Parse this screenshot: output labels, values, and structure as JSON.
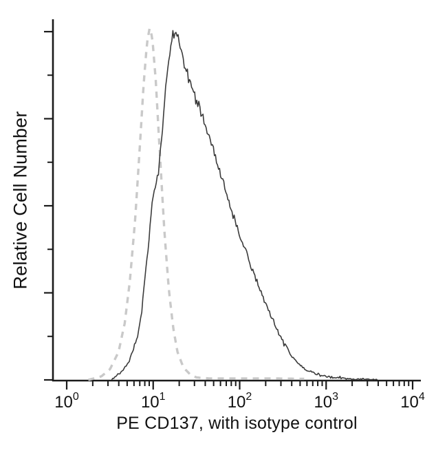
{
  "chart_data": {
    "type": "line",
    "chart_kind": "flow-cytometry-histogram",
    "title": "",
    "xlabel": "PE CD137, with isotype control",
    "ylabel": "Relative Cell Number",
    "x_scale": "log10",
    "x_range_exponents": [
      0,
      4
    ],
    "x_major_ticks": [
      {
        "base": "10",
        "exponent": "0"
      },
      {
        "base": "10",
        "exponent": "1"
      },
      {
        "base": "10",
        "exponent": "2"
      },
      {
        "base": "10",
        "exponent": "3"
      },
      {
        "base": "10",
        "exponent": "4"
      }
    ],
    "y_axis": {
      "label_visible": true,
      "tick_labels_visible": false,
      "major_tick_count": 5,
      "minor_ticks_between": 1
    },
    "grid": false,
    "legend_visible": false,
    "axis_color": "#1a1a1a",
    "background": "#ffffff",
    "series": [
      {
        "name": "isotype control",
        "line_style": "dashed",
        "color": "#c9c9c9",
        "line_width": 3.4,
        "dash_pattern": [
          9,
          8
        ],
        "noise_amplitude": 0,
        "noise_seed": 1,
        "points": [
          [
            0.25,
            0
          ],
          [
            0.4,
            0.01
          ],
          [
            0.5,
            0.03
          ],
          [
            0.6,
            0.08
          ],
          [
            0.67,
            0.16
          ],
          [
            0.73,
            0.28
          ],
          [
            0.79,
            0.45
          ],
          [
            0.85,
            0.68
          ],
          [
            0.89,
            0.84
          ],
          [
            0.93,
            0.96
          ],
          [
            0.96,
            1.0
          ],
          [
            0.99,
            0.97
          ],
          [
            1.03,
            0.85
          ],
          [
            1.08,
            0.63
          ],
          [
            1.13,
            0.42
          ],
          [
            1.18,
            0.26
          ],
          [
            1.23,
            0.15
          ],
          [
            1.28,
            0.08
          ],
          [
            1.35,
            0.035
          ],
          [
            1.43,
            0.015
          ],
          [
            1.5,
            0.007
          ],
          [
            1.65,
            0.004
          ],
          [
            2.0,
            0.004
          ],
          [
            2.4,
            0.004
          ],
          [
            2.75,
            0.003
          ]
        ]
      },
      {
        "name": "PE CD137",
        "line_style": "solid",
        "color": "#3a3a3a",
        "line_width": 1.6,
        "dash_pattern": [],
        "noise_amplitude": 0.022,
        "noise_seed": 9,
        "points": [
          [
            0.52,
            0
          ],
          [
            0.62,
            0.02
          ],
          [
            0.72,
            0.05
          ],
          [
            0.82,
            0.12
          ],
          [
            0.87,
            0.2
          ],
          [
            0.92,
            0.33
          ],
          [
            0.97,
            0.45
          ],
          [
            1.0,
            0.52
          ],
          [
            1.03,
            0.55
          ],
          [
            1.07,
            0.6
          ],
          [
            1.11,
            0.72
          ],
          [
            1.15,
            0.85
          ],
          [
            1.19,
            0.93
          ],
          [
            1.23,
            0.98
          ],
          [
            1.27,
            0.985
          ],
          [
            1.31,
            0.95
          ],
          [
            1.36,
            0.89
          ],
          [
            1.42,
            0.85
          ],
          [
            1.47,
            0.81
          ],
          [
            1.52,
            0.78
          ],
          [
            1.58,
            0.74
          ],
          [
            1.65,
            0.69
          ],
          [
            1.72,
            0.63
          ],
          [
            1.8,
            0.57
          ],
          [
            1.88,
            0.5
          ],
          [
            1.96,
            0.44
          ],
          [
            2.04,
            0.38
          ],
          [
            2.12,
            0.33
          ],
          [
            2.2,
            0.28
          ],
          [
            2.28,
            0.23
          ],
          [
            2.36,
            0.18
          ],
          [
            2.44,
            0.14
          ],
          [
            2.52,
            0.1
          ],
          [
            2.6,
            0.07
          ],
          [
            2.68,
            0.045
          ],
          [
            2.76,
            0.03
          ],
          [
            2.84,
            0.02
          ],
          [
            2.92,
            0.015
          ],
          [
            3.0,
            0.01
          ],
          [
            3.1,
            0.007
          ],
          [
            3.25,
            0.004
          ],
          [
            3.45,
            0.002
          ],
          [
            3.6,
            0.001
          ]
        ]
      }
    ]
  }
}
